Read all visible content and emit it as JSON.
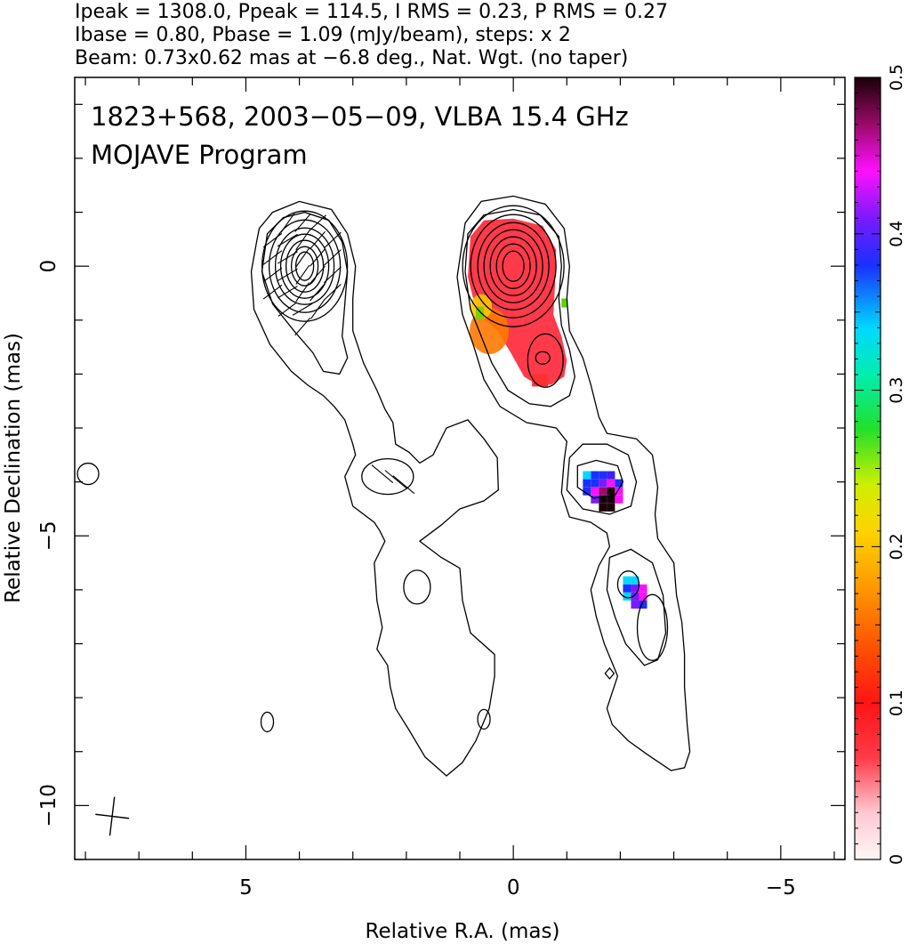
{
  "header": {
    "line1": "Ipeak = 1308.0, Ppeak = 114.5, I RMS = 0.23, P RMS = 0.27",
    "line2": "Ibase = 0.80, Pbase = 1.09 (mJy/beam), steps: x 2",
    "line3": "Beam: 0.73x0.62 mas at −6.8 deg., Nat. Wgt. (no taper)"
  },
  "panel": {
    "source_line": "1823+568, 2003−05−09, VLBA 15.4 GHz",
    "program_line": "MOJAVE Program"
  },
  "chart_data": {
    "type": "heatmap",
    "xlabel": "Relative R.A. (mas)",
    "ylabel": "Relative Declination (mas)",
    "xlim": [
      8.2,
      -6.2
    ],
    "ylim": [
      -11.0,
      3.5
    ],
    "x_ticks": [
      {
        "value": 5,
        "label": "5"
      },
      {
        "value": 0,
        "label": "0"
      },
      {
        "value": -5,
        "label": "−5"
      }
    ],
    "y_ticks": [
      {
        "value": 0,
        "label": "0"
      },
      {
        "value": -5,
        "label": "−5"
      },
      {
        "value": -10,
        "label": "−10"
      }
    ],
    "colorbar": {
      "range": [
        0,
        0.5
      ],
      "ticks": [
        {
          "value": 0,
          "label": "0"
        },
        {
          "value": 0.1,
          "label": "0.1"
        },
        {
          "value": 0.2,
          "label": "0.2"
        },
        {
          "value": 0.3,
          "label": "0.3"
        },
        {
          "value": 0.4,
          "label": "0.4"
        },
        {
          "value": 0.5,
          "label": "0.5"
        }
      ]
    },
    "left_map": {
      "core": {
        "x": 3.9,
        "y": 0.0
      },
      "features": [
        {
          "x": 2.35,
          "y": -3.9
        },
        {
          "x": 1.8,
          "y": -5.95
        },
        {
          "x": 7.95,
          "y": -3.85
        },
        {
          "x": 4.6,
          "y": -8.45
        },
        {
          "x": 0.55,
          "y": -8.4
        }
      ]
    },
    "right_map": {
      "core": {
        "x": 0.0,
        "y": 0.0
      },
      "features": [
        {
          "x": -1.6,
          "y": -4.0
        },
        {
          "x": -2.6,
          "y": -6.7
        },
        {
          "x": -1.8,
          "y": -7.55
        }
      ],
      "fractional_pol_patches": [
        {
          "name": "core",
          "x": 0.0,
          "y": -0.5,
          "value": 0.08
        },
        {
          "name": "inner-jet",
          "x": -0.6,
          "y": -1.8,
          "value": 0.07
        },
        {
          "name": "knot-a",
          "x": -1.6,
          "y": -4.05,
          "value": 0.42
        },
        {
          "name": "knot-b",
          "x": -2.2,
          "y": -5.95,
          "value": 0.4
        }
      ]
    },
    "beam": {
      "major": 0.73,
      "minor": 0.62,
      "pa_deg": -6.8,
      "x": 7.5,
      "y": -10.2
    }
  }
}
